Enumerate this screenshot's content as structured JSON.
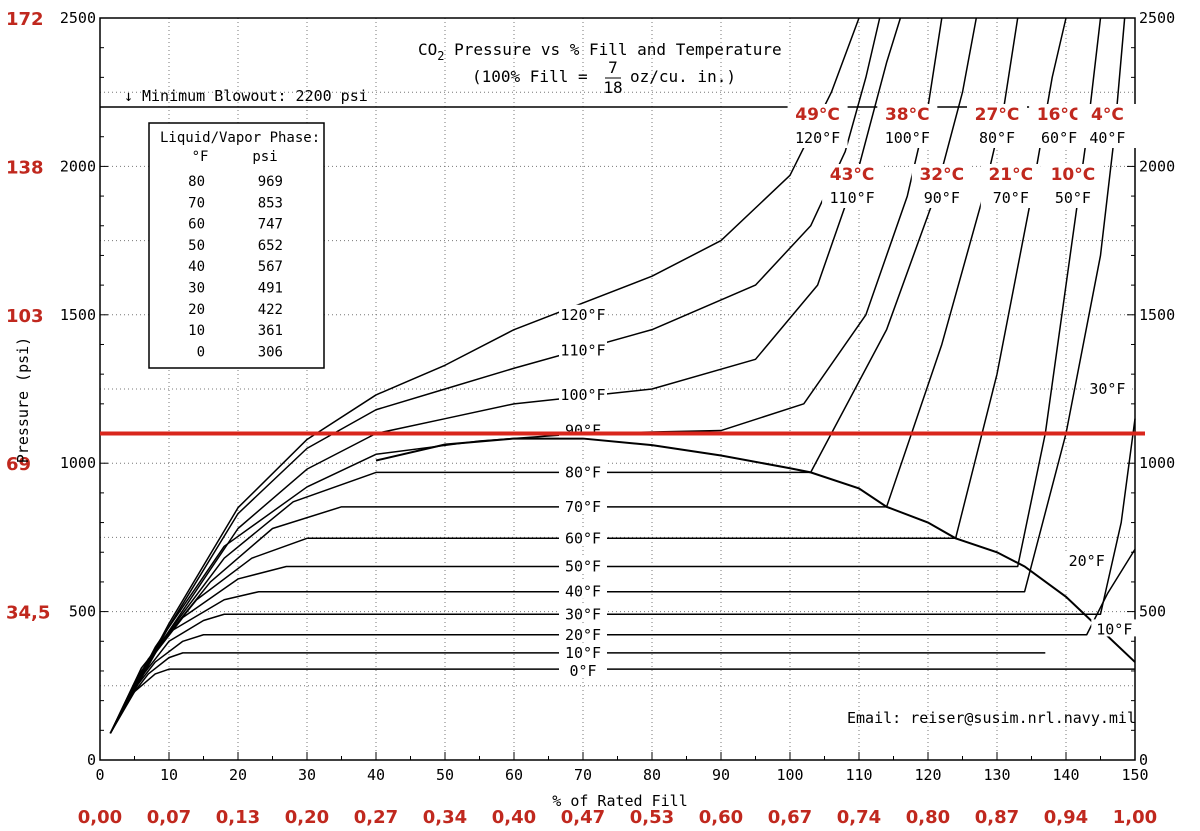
{
  "chart_data": {
    "type": "line",
    "title_parts": {
      "pre": "CO",
      "sub": "2",
      "post": " Pressure vs % Fill and Temperature"
    },
    "subtitle_parts": {
      "pre": "(100% Fill = ",
      "num": "7",
      "den": "18",
      "post": " oz/cu. in.)"
    },
    "xlabel": "% of Rated Fill",
    "ylabel": "Pressure (psi)",
    "xlim": [
      0,
      150
    ],
    "ylim": [
      0,
      2500
    ],
    "grid": true,
    "x_ticks": [
      "0",
      "10",
      "20",
      "30",
      "40",
      "50",
      "60",
      "70",
      "80",
      "90",
      "100",
      "110",
      "120",
      "130",
      "140",
      "150"
    ],
    "y_ticks": [
      "0",
      "500",
      "1000",
      "1500",
      "2000",
      "2500"
    ],
    "y_ticks_right": [
      "0",
      "500",
      "1000",
      "1500",
      "2000",
      "2500"
    ],
    "bar_ticks_left": [
      {
        "label": "172",
        "psi": 2500
      },
      {
        "label": "138",
        "psi": 2000
      },
      {
        "label": "103",
        "psi": 1500
      },
      {
        "label": "69",
        "psi": 1000
      },
      {
        "label": "34,5",
        "psi": 500
      }
    ],
    "g_cm3_ticks": [
      "0,00",
      "0,07",
      "0,13",
      "0,20",
      "0,27",
      "0,34",
      "0,40",
      "0,47",
      "0,53",
      "0,60",
      "0,67",
      "0,74",
      "0,80",
      "0,87",
      "0,94",
      "1,00"
    ],
    "blowout": {
      "label": "Minimum Blowout: 2200 psi",
      "arrow": "↓",
      "psi": 2200
    },
    "red_line_psi": 1100,
    "email": "Email: reiser@susim.nrl.navy.mil",
    "phase_table": {
      "title": "Liquid/Vapor Phase:",
      "headers": [
        "°F",
        "psi"
      ],
      "rows": [
        [
          "80",
          "969"
        ],
        [
          "70",
          "853"
        ],
        [
          "60",
          "747"
        ],
        [
          "50",
          "652"
        ],
        [
          "40",
          "567"
        ],
        [
          "30",
          "491"
        ],
        [
          "20",
          "422"
        ],
        [
          "10",
          "361"
        ],
        [
          "0",
          "306"
        ]
      ]
    },
    "dome": [
      [
        40,
        1009
      ],
      [
        50,
        1063
      ],
      [
        60,
        1083
      ],
      [
        70,
        1083
      ],
      [
        80,
        1061
      ],
      [
        90,
        1026
      ],
      [
        100,
        983
      ],
      [
        103,
        969
      ],
      [
        110,
        915
      ],
      [
        114,
        853
      ],
      [
        120,
        800
      ],
      [
        124,
        747
      ],
      [
        130,
        700
      ],
      [
        134,
        652
      ],
      [
        140,
        550
      ],
      [
        150,
        330
      ]
    ],
    "isotherms": [
      {
        "name": "0°F",
        "label_fill": 70,
        "label_psi": 300,
        "points": [
          [
            1.5,
            90
          ],
          [
            3,
            150
          ],
          [
            5,
            230
          ],
          [
            8,
            290
          ],
          [
            10,
            306
          ],
          [
            150,
            306
          ]
        ]
      },
      {
        "name": "10°F",
        "label_fill": 70,
        "label_psi": 361,
        "points": [
          [
            1.5,
            90
          ],
          [
            4,
            200
          ],
          [
            7,
            290
          ],
          [
            10,
            345
          ],
          [
            12,
            361
          ],
          [
            137,
            361
          ]
        ]
      },
      {
        "name": "20°F",
        "label_fill": 70,
        "label_psi": 422,
        "points": [
          [
            1.5,
            90
          ],
          [
            4,
            210
          ],
          [
            8,
            330
          ],
          [
            12,
            400
          ],
          [
            15,
            422
          ],
          [
            143,
            422
          ],
          [
            146,
            560
          ],
          [
            150,
            710
          ]
        ]
      },
      {
        "name": "30°F",
        "label_fill": 70,
        "label_psi": 491,
        "points": [
          [
            1.5,
            90
          ],
          [
            5,
            250
          ],
          [
            10,
            400
          ],
          [
            15,
            470
          ],
          [
            18,
            491
          ],
          [
            145,
            491
          ],
          [
            148,
            800
          ],
          [
            150,
            1150
          ]
        ]
      },
      {
        "name": "40°F",
        "label_fill": 70,
        "label_psi": 567,
        "points": [
          [
            1.5,
            90
          ],
          [
            5,
            260
          ],
          [
            10,
            430
          ],
          [
            18,
            540
          ],
          [
            23,
            567
          ],
          [
            134,
            567
          ],
          [
            140,
            1100
          ],
          [
            145,
            1700
          ],
          [
            147,
            2100
          ],
          [
            148.5,
            2500
          ]
        ]
      },
      {
        "name": "50°F",
        "label_fill": 70,
        "label_psi": 652,
        "points": [
          [
            1.5,
            90
          ],
          [
            6,
            300
          ],
          [
            12,
            480
          ],
          [
            20,
            610
          ],
          [
            27,
            652
          ],
          [
            133,
            652
          ],
          [
            137,
            1100
          ],
          [
            140,
            1600
          ],
          [
            143,
            2100
          ],
          [
            145,
            2500
          ]
        ]
      },
      {
        "name": "60°F",
        "label_fill": 70,
        "label_psi": 747,
        "points": [
          [
            1.5,
            90
          ],
          [
            6,
            310
          ],
          [
            14,
            540
          ],
          [
            22,
            680
          ],
          [
            30,
            747
          ],
          [
            124,
            747
          ],
          [
            130,
            1300
          ],
          [
            135,
            1900
          ],
          [
            138,
            2300
          ],
          [
            140,
            2500
          ]
        ]
      },
      {
        "name": "70°F",
        "label_fill": 70,
        "label_psi": 853,
        "points": [
          [
            1.5,
            90
          ],
          [
            7,
            340
          ],
          [
            16,
            600
          ],
          [
            25,
            780
          ],
          [
            35,
            853
          ],
          [
            114,
            853
          ],
          [
            122,
            1400
          ],
          [
            128,
            1900
          ],
          [
            131,
            2200
          ],
          [
            133,
            2500
          ]
        ]
      },
      {
        "name": "80°F",
        "label_fill": 70,
        "label_psi": 969,
        "points": [
          [
            1.5,
            90
          ],
          [
            8,
            370
          ],
          [
            18,
            680
          ],
          [
            28,
            870
          ],
          [
            40,
            969
          ],
          [
            103,
            969
          ],
          [
            114,
            1450
          ],
          [
            121,
            1900
          ],
          [
            125,
            2250
          ],
          [
            127,
            2500
          ]
        ]
      },
      {
        "name": "90°F",
        "label_fill": 70,
        "label_psi": 1110,
        "points": [
          [
            1.5,
            90
          ],
          [
            8,
            380
          ],
          [
            18,
            720
          ],
          [
            30,
            920
          ],
          [
            40,
            1030
          ],
          [
            55,
            1075
          ],
          [
            70,
            1100
          ],
          [
            90,
            1110
          ],
          [
            102,
            1200
          ],
          [
            111,
            1500
          ],
          [
            117,
            1900
          ],
          [
            120,
            2200
          ],
          [
            122,
            2500
          ]
        ]
      },
      {
        "name": "100°F",
        "label_fill": 70,
        "label_psi": 1230,
        "points": [
          [
            1.5,
            90
          ],
          [
            9,
            400
          ],
          [
            20,
            780
          ],
          [
            30,
            980
          ],
          [
            40,
            1100
          ],
          [
            50,
            1150
          ],
          [
            60,
            1200
          ],
          [
            80,
            1250
          ],
          [
            95,
            1350
          ],
          [
            104,
            1600
          ],
          [
            110,
            2000
          ],
          [
            114,
            2350
          ],
          [
            116,
            2500
          ]
        ]
      },
      {
        "name": "110°F",
        "label_fill": 70,
        "label_psi": 1380,
        "points": [
          [
            1.5,
            90
          ],
          [
            10,
            450
          ],
          [
            20,
            830
          ],
          [
            30,
            1050
          ],
          [
            40,
            1180
          ],
          [
            50,
            1250
          ],
          [
            60,
            1320
          ],
          [
            80,
            1450
          ],
          [
            95,
            1600
          ],
          [
            103,
            1800
          ],
          [
            108,
            2050
          ],
          [
            111,
            2300
          ],
          [
            113,
            2500
          ]
        ]
      },
      {
        "name": "120°F",
        "label_fill": 70,
        "label_psi": 1500,
        "points": [
          [
            1.5,
            90
          ],
          [
            10,
            460
          ],
          [
            20,
            850
          ],
          [
            30,
            1080
          ],
          [
            40,
            1230
          ],
          [
            50,
            1330
          ],
          [
            60,
            1450
          ],
          [
            80,
            1630
          ],
          [
            90,
            1750
          ],
          [
            100,
            1970
          ],
          [
            106,
            2250
          ],
          [
            110,
            2500
          ]
        ]
      }
    ],
    "top_labels": [
      {
        "c": "49°C",
        "f": "120°F",
        "fill": 104,
        "row": 1
      },
      {
        "c": "38°C",
        "f": "100°F",
        "fill": 117,
        "row": 1
      },
      {
        "c": "27°C",
        "f": "80°F",
        "fill": 130,
        "row": 1
      },
      {
        "c": "16°C",
        "f": "60°F",
        "fill": 139,
        "row": 1
      },
      {
        "c": "4°C",
        "f": "40°F",
        "fill": 146,
        "row": 1
      },
      {
        "c": "43°C",
        "f": "110°F",
        "fill": 109,
        "row": 2
      },
      {
        "c": "32°C",
        "f": "90°F",
        "fill": 122,
        "row": 2
      },
      {
        "c": "21°C",
        "f": "70°F",
        "fill": 132,
        "row": 2
      },
      {
        "c": "10°C",
        "f": "50°F",
        "fill": 141,
        "row": 2
      }
    ],
    "right_labels": [
      {
        "f": "30°F",
        "fill": 146,
        "psi": 1250
      },
      {
        "f": "20°F",
        "fill": 143,
        "psi": 670
      },
      {
        "f": "10°F",
        "fill": 147,
        "psi": 440
      }
    ]
  }
}
